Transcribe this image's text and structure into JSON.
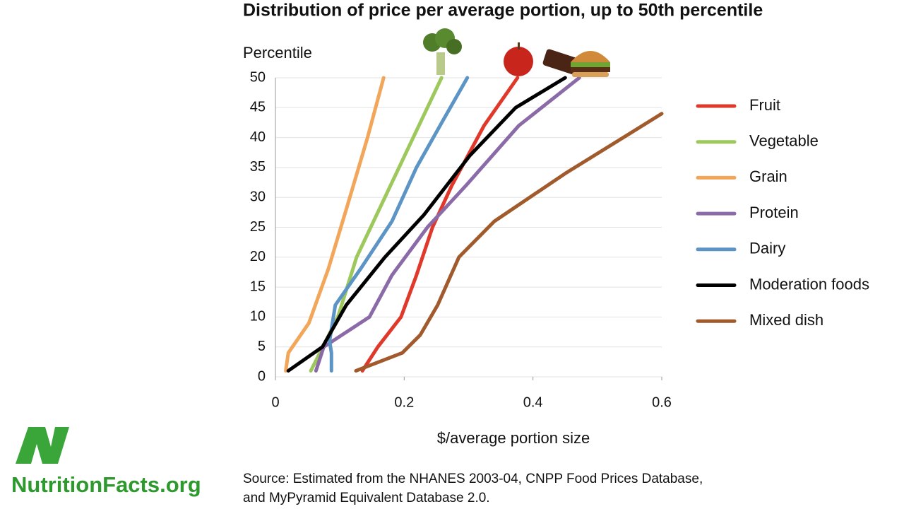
{
  "chart_data": {
    "type": "line",
    "title": "Distribution of price per average portion, up to 50th percentile",
    "y_label": "Percentile",
    "x_label": "$/average portion size",
    "source": [
      "Source: Estimated from the NHANES 2003-04, CNPP Food Prices Database,",
      "and MyPyramid Equivalent Database 2.0."
    ],
    "xlim": [
      0,
      0.6
    ],
    "xticks": [
      0,
      0.2,
      0.4,
      0.6
    ],
    "ylim": [
      0,
      50
    ],
    "yticks": [
      0,
      5,
      10,
      15,
      20,
      25,
      30,
      35,
      40,
      45,
      50
    ],
    "grid": true,
    "series": [
      {
        "name": "Fruit",
        "color": "#e0392b",
        "x": [
          0.135,
          0.159,
          0.195,
          0.219,
          0.244,
          0.274,
          0.324,
          0.376
        ],
        "values": [
          1,
          5,
          10,
          17,
          25,
          32,
          42,
          50
        ]
      },
      {
        "name": "Vegetable",
        "color": "#9dc85c",
        "x": [
          0.055,
          0.097,
          0.126,
          0.17,
          0.214,
          0.258
        ],
        "values": [
          1,
          10,
          20,
          30,
          40,
          50
        ]
      },
      {
        "name": "Grain",
        "color": "#f2a65a",
        "x": [
          0.016,
          0.02,
          0.052,
          0.082,
          0.11,
          0.143,
          0.168
        ],
        "values": [
          1,
          4,
          9,
          18,
          28,
          40,
          50
        ]
      },
      {
        "name": "Protein",
        "color": "#8a6ba8",
        "x": [
          0.063,
          0.075,
          0.146,
          0.181,
          0.236,
          0.296,
          0.378,
          0.472
        ],
        "values": [
          1,
          5,
          10,
          17,
          25,
          32,
          42,
          50
        ]
      },
      {
        "name": "Dairy",
        "color": "#5b94c5",
        "x": [
          0.087,
          0.087,
          0.084,
          0.093,
          0.132,
          0.181,
          0.219,
          0.261,
          0.298
        ],
        "values": [
          1,
          4,
          6,
          12,
          18,
          26,
          35,
          43,
          50
        ]
      },
      {
        "name": "Moderation foods",
        "color": "#000000",
        "x": [
          0.02,
          0.073,
          0.11,
          0.17,
          0.23,
          0.302,
          0.373,
          0.45
        ],
        "values": [
          1,
          5,
          12,
          20,
          27,
          37,
          45,
          50
        ]
      },
      {
        "name": "Mixed dish",
        "color": "#a05a2c",
        "x": [
          0.125,
          0.197,
          0.225,
          0.252,
          0.285,
          0.34,
          0.45,
          0.6
        ],
        "values": [
          1,
          4,
          7,
          12,
          20,
          26,
          34,
          44
        ]
      }
    ]
  },
  "branding": {
    "logo": "NutritionFacts.org"
  }
}
